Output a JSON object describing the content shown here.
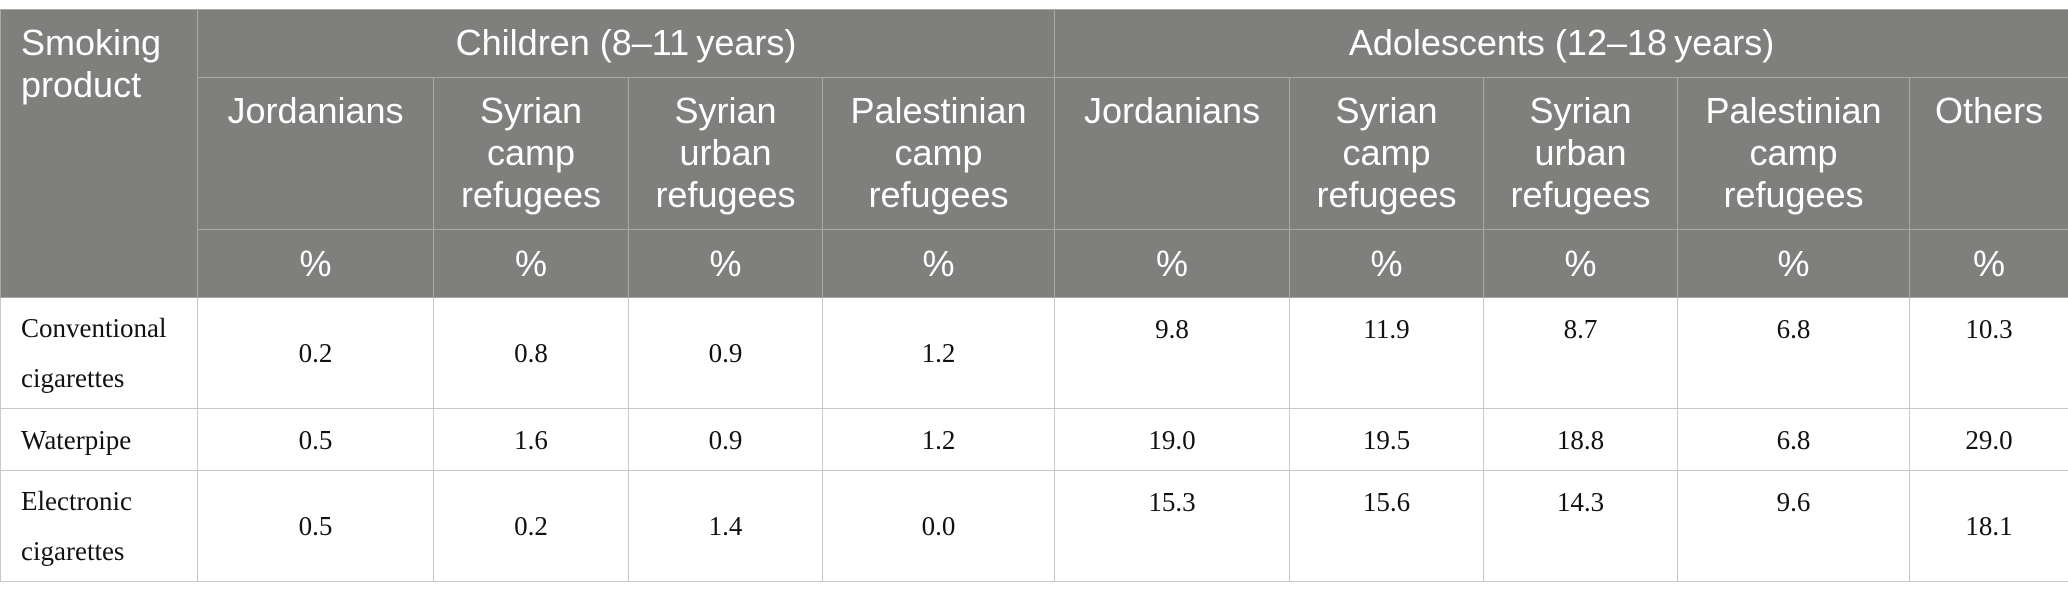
{
  "table": {
    "corner_header": "Smoking product",
    "groups": [
      {
        "label": "Children (8–11 years)"
      },
      {
        "label": "Adolescents (12–18 years)"
      }
    ],
    "columns": [
      "Jordanians",
      "Syrian camp refugees",
      "Syrian urban refugees",
      "Palestinian camp refugees",
      "Jordanians",
      "Syrian camp refugees",
      "Syrian urban refugees",
      "Palestinian camp refugees",
      "Others"
    ],
    "unit": "%",
    "rows": [
      {
        "label": "Conventional cigarettes",
        "values": [
          "0.2",
          "0.8",
          "0.9",
          "1.2",
          "9.8",
          "11.9",
          "8.7",
          "6.8",
          "10.3"
        ]
      },
      {
        "label": "Waterpipe",
        "values": [
          "0.5",
          "1.6",
          "0.9",
          "1.2",
          "19.0",
          "19.5",
          "18.8",
          "6.8",
          "29.0"
        ]
      },
      {
        "label": "Electronic cigarettes",
        "values": [
          "0.5",
          "0.2",
          "1.4",
          "0.0",
          "15.3",
          "15.6",
          "14.3",
          "9.6",
          "18.1"
        ]
      }
    ]
  }
}
